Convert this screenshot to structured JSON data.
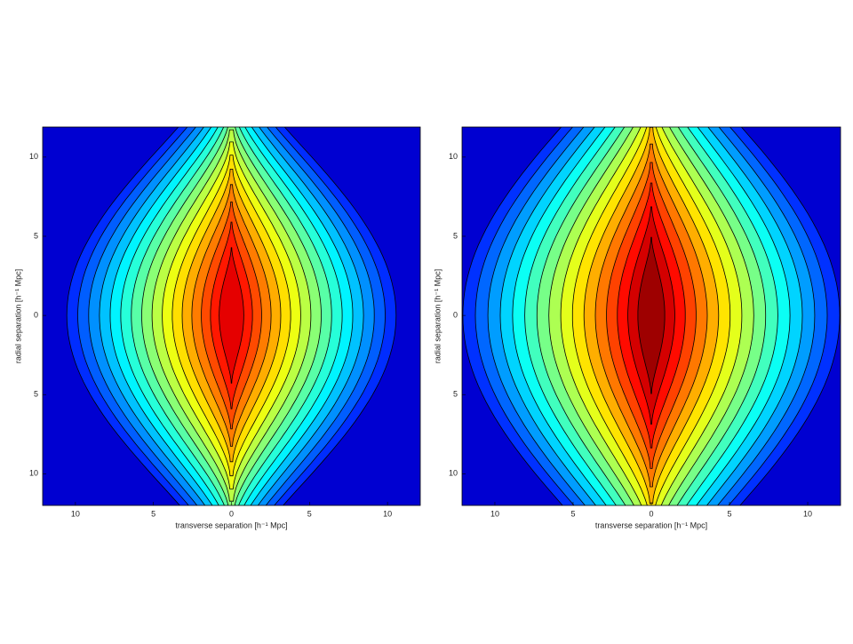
{
  "chart_data": [
    {
      "type": "contour",
      "xlabel": "transverse separation [h⁻¹ Mpc]",
      "ylabel": "radial separation [h⁻¹ Mpc]",
      "xlim": [
        -12.1,
        12.1
      ],
      "ylim": [
        -12,
        11.9
      ],
      "xticks": [
        {
          "value": -10,
          "label": "10"
        },
        {
          "value": -5,
          "label": "5"
        },
        0,
        5,
        10
      ],
      "yticks": [
        {
          "value": -10,
          "label": "10"
        },
        {
          "value": -5,
          "label": "5"
        },
        0,
        5,
        10
      ]
    },
    {
      "type": "contour",
      "xlabel": "transverse separation [h⁻¹ Mpc]",
      "ylabel": "radial separation [h⁻¹ Mpc]",
      "xlim": [
        -12.1,
        12.1
      ],
      "ylim": [
        -12,
        11.9
      ],
      "xticks": [
        {
          "value": -10,
          "label": "10"
        },
        {
          "value": -5,
          "label": "5"
        },
        0,
        5,
        10
      ],
      "yticks": [
        {
          "value": -10,
          "label": "10"
        },
        {
          "value": -5,
          "label": "5"
        },
        0,
        5,
        10
      ]
    }
  ]
}
